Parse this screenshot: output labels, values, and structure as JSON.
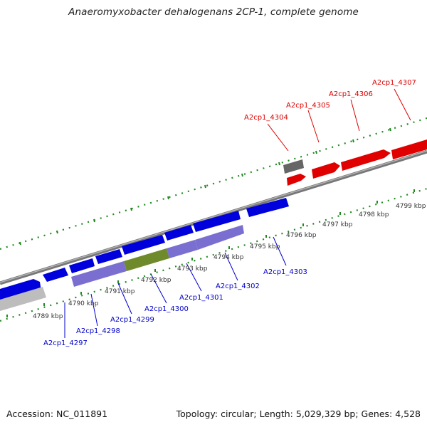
{
  "title": "Anaeromyxobacter dehalogenans 2CP-1, complete genome",
  "footer": {
    "accession": "Accession: NC_011891",
    "summary": "Topology: circular; Length: 5,029,329 bp; Genes: 4,528"
  },
  "colors": {
    "backbone": "#8c8c8c",
    "tick": "#208a20",
    "forward_gene": "#e00000",
    "reverse_gene": "#0000dd",
    "purple_gene": "#7a6fd0",
    "olive_gene": "#6e8a2a",
    "gray_gene": "#666666",
    "light_gray_gene": "#bdbdbd",
    "blue_label": "#0000cc",
    "red_label": "#dd0000"
  },
  "kbp_labels": [
    "4789 kbp",
    "4790 kbp",
    "4791 kbp",
    "4792 kbp",
    "4793 kbp",
    "4794 kbp",
    "4795 kbp",
    "4796 kbp",
    "4797 kbp",
    "4798 kbp",
    "4799 kbp"
  ],
  "gene_labels": {
    "a4297": "A2cp1_4297",
    "a4298": "A2cp1_4298",
    "a4299": "A2cp1_4299",
    "a4300": "A2cp1_4300",
    "a4301": "A2cp1_4301",
    "a4302": "A2cp1_4302",
    "a4303": "A2cp1_4303",
    "a4304": "A2cp1_4304",
    "a4305": "A2cp1_4305",
    "a4306": "A2cp1_4306",
    "a4307": "A2cp1_4307"
  }
}
